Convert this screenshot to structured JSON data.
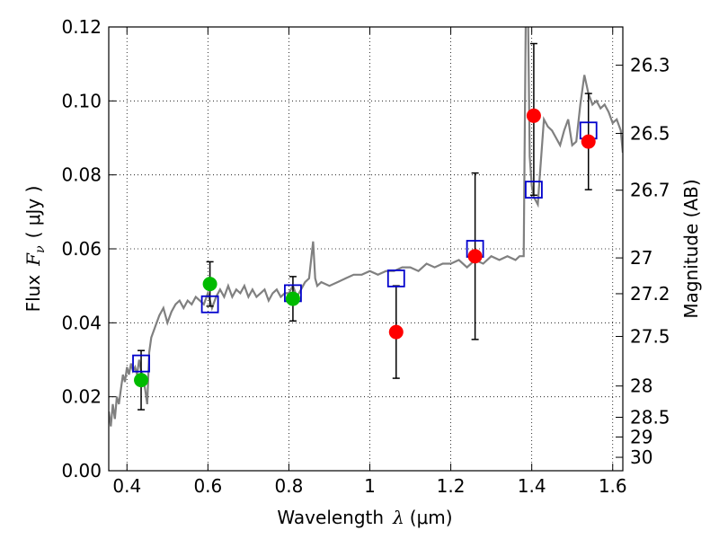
{
  "chart_data": {
    "type": "scatter",
    "xlabel_text": "Wavelength",
    "xlabel_symbol": "λ",
    "xlabel_unit": "(μm)",
    "ylabel_text": "Flux",
    "ylabel_symbol": "F",
    "ylabel_subscript": "ν",
    "ylabel_unit": "( μJy )",
    "y2label": "Magnitude (AB)",
    "xlim": [
      0.355,
      1.625
    ],
    "ylim": [
      0.0,
      0.12
    ],
    "x_ticks": [
      0.4,
      0.6,
      0.8,
      1.0,
      1.2,
      1.4,
      1.6
    ],
    "x_tick_labels": [
      "0.4",
      "0.6",
      "0.8",
      "1",
      "1.2",
      "1.4",
      "1.6"
    ],
    "y_ticks": [
      0.0,
      0.02,
      0.04,
      0.06,
      0.08,
      0.1,
      0.12
    ],
    "y_tick_labels": [
      "0.00",
      "0.02",
      "0.04",
      "0.06",
      "0.08",
      "0.10",
      "0.12"
    ],
    "y2_ticks": [
      26.3,
      26.5,
      26.7,
      27,
      27.2,
      27.5,
      28,
      28.5,
      29,
      30
    ],
    "y2_tick_labels": [
      "26.3",
      "26.5",
      "26.7",
      "27",
      "27.2",
      "27.5",
      "28",
      "28.5",
      "29",
      "30"
    ],
    "grid": true,
    "colors": {
      "spectrum": "#808080",
      "model_points": "#0000cc",
      "ground_points": "#00bb00",
      "hst_points": "#ff0000",
      "errorbars": "#000000"
    },
    "spectrum": {
      "x": [
        0.355,
        0.36,
        0.365,
        0.37,
        0.375,
        0.38,
        0.385,
        0.39,
        0.395,
        0.4,
        0.405,
        0.41,
        0.415,
        0.42,
        0.425,
        0.43,
        0.435,
        0.44,
        0.445,
        0.45,
        0.455,
        0.46,
        0.47,
        0.48,
        0.49,
        0.5,
        0.51,
        0.52,
        0.53,
        0.54,
        0.55,
        0.56,
        0.57,
        0.58,
        0.59,
        0.6,
        0.61,
        0.62,
        0.63,
        0.64,
        0.65,
        0.66,
        0.67,
        0.68,
        0.69,
        0.7,
        0.71,
        0.72,
        0.73,
        0.74,
        0.75,
        0.76,
        0.77,
        0.78,
        0.79,
        0.8,
        0.81,
        0.82,
        0.83,
        0.84,
        0.85,
        0.86,
        0.865,
        0.87,
        0.88,
        0.9,
        0.92,
        0.94,
        0.96,
        0.98,
        1.0,
        1.02,
        1.04,
        1.06,
        1.08,
        1.1,
        1.12,
        1.14,
        1.16,
        1.18,
        1.2,
        1.22,
        1.24,
        1.26,
        1.28,
        1.3,
        1.32,
        1.34,
        1.36,
        1.37,
        1.38,
        1.385,
        1.39,
        1.395,
        1.4,
        1.405,
        1.41,
        1.415,
        1.42,
        1.43,
        1.44,
        1.45,
        1.46,
        1.47,
        1.48,
        1.49,
        1.5,
        1.51,
        1.52,
        1.53,
        1.54,
        1.55,
        1.56,
        1.57,
        1.58,
        1.59,
        1.6,
        1.61,
        1.62,
        1.625
      ],
      "y": [
        0.016,
        0.012,
        0.018,
        0.014,
        0.02,
        0.018,
        0.022,
        0.026,
        0.024,
        0.028,
        0.026,
        0.029,
        0.027,
        0.028,
        0.026,
        0.03,
        0.027,
        0.025,
        0.022,
        0.018,
        0.032,
        0.036,
        0.039,
        0.042,
        0.044,
        0.04,
        0.043,
        0.045,
        0.046,
        0.044,
        0.046,
        0.045,
        0.047,
        0.046,
        0.045,
        0.048,
        0.044,
        0.047,
        0.049,
        0.047,
        0.05,
        0.047,
        0.049,
        0.048,
        0.05,
        0.047,
        0.049,
        0.047,
        0.048,
        0.049,
        0.046,
        0.048,
        0.049,
        0.047,
        0.048,
        0.048,
        0.05,
        0.047,
        0.049,
        0.051,
        0.052,
        0.062,
        0.052,
        0.05,
        0.051,
        0.05,
        0.051,
        0.052,
        0.053,
        0.053,
        0.054,
        0.053,
        0.054,
        0.054,
        0.055,
        0.055,
        0.054,
        0.056,
        0.055,
        0.056,
        0.056,
        0.057,
        0.055,
        0.057,
        0.056,
        0.058,
        0.057,
        0.058,
        0.057,
        0.058,
        0.058,
        0.12,
        0.13,
        0.085,
        0.077,
        0.074,
        0.073,
        0.072,
        0.08,
        0.095,
        0.093,
        0.092,
        0.09,
        0.088,
        0.092,
        0.095,
        0.088,
        0.089,
        0.099,
        0.107,
        0.102,
        0.099,
        0.1,
        0.098,
        0.099,
        0.097,
        0.094,
        0.095,
        0.092,
        0.086
      ]
    },
    "model_points": {
      "x": [
        0.435,
        0.605,
        0.81,
        1.065,
        1.26,
        1.405,
        1.54
      ],
      "y": [
        0.029,
        0.045,
        0.048,
        0.052,
        0.06,
        0.076,
        0.092
      ]
    },
    "ground_points": {
      "x": [
        0.435,
        0.605,
        0.81
      ],
      "y": [
        0.0245,
        0.0505,
        0.0465
      ],
      "err_lo": [
        0.008,
        0.006,
        0.006
      ],
      "err_hi": [
        0.008,
        0.006,
        0.006
      ]
    },
    "hst_points": {
      "x": [
        1.065,
        1.26,
        1.405,
        1.54
      ],
      "y": [
        0.0375,
        0.058,
        0.096,
        0.089
      ],
      "err_lo": [
        0.0125,
        0.0225,
        0.0215,
        0.013
      ],
      "err_hi": [
        0.0125,
        0.0225,
        0.0195,
        0.013
      ]
    }
  }
}
